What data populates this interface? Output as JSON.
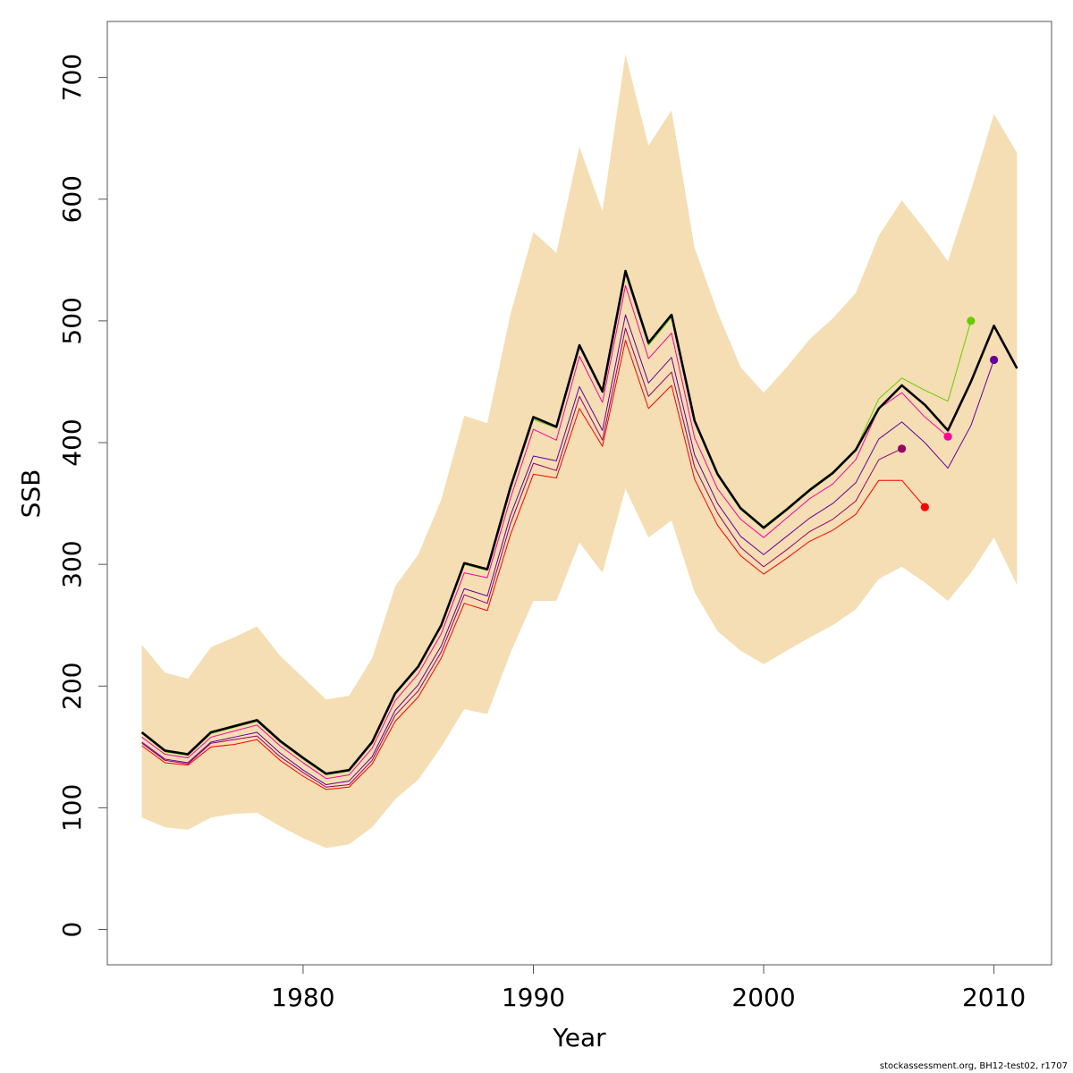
{
  "chart_data": {
    "type": "line",
    "title": "",
    "xlabel": "Year",
    "ylabel": "SSB",
    "xlim": [
      1971.5,
      2012.5
    ],
    "ylim": [
      -29,
      746
    ],
    "x_ticks": [
      1980,
      1990,
      2000,
      2010
    ],
    "y_ticks": [
      0,
      100,
      200,
      300,
      400,
      500,
      600,
      700
    ],
    "grid": false,
    "legend": "none",
    "colors": {
      "band": "#f5deb3",
      "main": "#000000",
      "peel_green": "#66cc00",
      "peel_purple": "#660099",
      "peel_pink": "#ff0099",
      "peel_maroon": "#990066",
      "peel_red": "#ff0000"
    },
    "band": {
      "x": [
        1973,
        1974,
        1975,
        1976,
        1977,
        1978,
        1979,
        1980,
        1981,
        1982,
        1983,
        1984,
        1985,
        1986,
        1987,
        1988,
        1989,
        1990,
        1991,
        1992,
        1993,
        1994,
        1995,
        1996,
        1997,
        1998,
        1999,
        2000,
        2001,
        2002,
        2003,
        2004,
        2005,
        2006,
        2007,
        2008,
        2009,
        2010,
        2011
      ],
      "upper": [
        234,
        211,
        206,
        232,
        240,
        249,
        225,
        207,
        189,
        192,
        223,
        282,
        308,
        353,
        422,
        416,
        505,
        573,
        556,
        643,
        590,
        719,
        644,
        673,
        560,
        507,
        462,
        441,
        462,
        485,
        502,
        523,
        570,
        599,
        575,
        549,
        607,
        670,
        638
      ],
      "lower": [
        92,
        84,
        82,
        92,
        95,
        96,
        85,
        75,
        67,
        70,
        84,
        107,
        123,
        150,
        181,
        177,
        227,
        270,
        270,
        318,
        293,
        362,
        322,
        336,
        277,
        245,
        229,
        218,
        229,
        240,
        250,
        263,
        288,
        298,
        285,
        270,
        293,
        322,
        283
      ]
    },
    "series": [
      {
        "x": [
          1973,
          1974,
          1975,
          1976,
          1977,
          1978,
          1979,
          1980,
          1981,
          1982,
          1983,
          1984,
          1985,
          1986,
          1987,
          1988,
          1989,
          1990,
          1991,
          1992,
          1993,
          1994,
          1995,
          1996,
          1997,
          1998,
          1999,
          2000,
          2001,
          2002,
          2003,
          2004,
          2005,
          2006,
          2007,
          2008,
          2009,
          2010,
          2011
        ],
        "values": [
          162,
          147,
          144,
          162,
          167,
          172,
          155,
          141,
          128,
          131,
          154,
          194,
          216,
          250,
          301,
          296,
          363,
          421,
          413,
          480,
          442,
          541,
          482,
          505,
          418,
          374,
          346,
          330,
          345,
          361,
          375,
          394,
          428,
          447,
          431,
          410,
          450,
          496,
          461
        ],
        "color": "#000000",
        "width": 2.6
      },
      {
        "x": [
          1973,
          1974,
          1975,
          1976,
          1977,
          1978,
          1979,
          1980,
          1981,
          1982,
          1983,
          1984,
          1985,
          1986,
          1987,
          1988,
          1989,
          1990,
          1991,
          1992,
          1993,
          1994,
          1995,
          1996,
          1997,
          1998,
          1999,
          2000,
          2001,
          2002,
          2003,
          2004,
          2005,
          2006,
          2007,
          2008,
          2009
        ],
        "values": [
          161,
          146,
          143,
          161,
          166,
          171,
          154,
          140,
          127,
          130,
          153,
          193,
          215,
          249,
          300,
          295,
          362,
          419,
          412,
          479,
          441,
          539,
          480,
          503,
          418,
          375,
          347,
          331,
          346,
          362,
          376,
          395,
          436,
          453,
          443,
          434,
          500
        ],
        "color": "#66cc00",
        "width": 1,
        "end_point": true
      },
      {
        "x": [
          1973,
          1974,
          1975,
          1976,
          1977,
          1978,
          1979,
          1980,
          1981,
          1982,
          1983,
          1984,
          1985,
          1986,
          1987,
          1988,
          1989,
          1990,
          1991,
          1992,
          1993,
          1994,
          1995,
          1996,
          1997,
          1998,
          1999,
          2000,
          2001,
          2002,
          2003,
          2004,
          2005,
          2006,
          2007,
          2008
        ],
        "values": [
          158,
          144,
          141,
          158,
          163,
          168,
          151,
          137,
          124,
          127,
          149,
          188,
          210,
          243,
          293,
          289,
          354,
          411,
          402,
          471,
          433,
          529,
          469,
          490,
          404,
          362,
          337,
          322,
          338,
          354,
          366,
          386,
          428,
          441,
          421,
          405
        ],
        "color": "#ff0099",
        "width": 1,
        "end_point": true
      },
      {
        "x": [
          1973,
          1974,
          1975,
          1976,
          1977,
          1978,
          1979,
          1980,
          1981,
          1982,
          1983,
          1984,
          1985,
          1986,
          1987,
          1988,
          1989,
          1990,
          1991,
          1992,
          1993,
          1994,
          1995,
          1996,
          1997,
          1998,
          1999,
          2000,
          2001,
          2002,
          2003,
          2004,
          2005,
          2006,
          2007,
          2008,
          2009,
          2010
        ],
        "values": [
          154,
          140,
          137,
          154,
          158,
          162,
          145,
          131,
          119,
          122,
          142,
          180,
          201,
          233,
          280,
          274,
          340,
          389,
          385,
          446,
          410,
          505,
          449,
          470,
          390,
          350,
          323,
          308,
          323,
          338,
          350,
          367,
          403,
          417,
          400,
          379,
          414,
          468
        ],
        "color": "#660099",
        "width": 1,
        "end_point": true
      },
      {
        "x": [
          1973,
          1974,
          1975,
          1976,
          1977,
          1978,
          1979,
          1980,
          1981,
          1982,
          1983,
          1984,
          1985,
          1986,
          1987,
          1988,
          1989,
          1990,
          1991,
          1992,
          1993,
          1994,
          1995,
          1996,
          1997,
          1998,
          1999,
          2000,
          2001,
          2002,
          2003,
          2004,
          2005,
          2006
        ],
        "values": [
          153,
          139,
          136,
          153,
          156,
          159,
          142,
          129,
          117,
          119,
          139,
          176,
          196,
          228,
          275,
          268,
          333,
          383,
          377,
          438,
          402,
          494,
          438,
          458,
          380,
          342,
          314,
          298,
          312,
          327,
          337,
          352,
          386,
          395
        ],
        "color": "#990066",
        "width": 1,
        "end_point": true
      },
      {
        "x": [
          1973,
          1974,
          1975,
          1976,
          1977,
          1978,
          1979,
          1980,
          1981,
          1982,
          1983,
          1984,
          1985,
          1986,
          1987,
          1988,
          1989,
          1990,
          1991,
          1992,
          1993,
          1994,
          1995,
          1996,
          1997,
          1998,
          1999,
          2000,
          2001,
          2002,
          2003,
          2004,
          2005,
          2006,
          2007
        ],
        "values": [
          151,
          137,
          135,
          150,
          152,
          156,
          139,
          126,
          115,
          117,
          136,
          171,
          191,
          223,
          268,
          262,
          324,
          374,
          371,
          428,
          397,
          484,
          428,
          447,
          370,
          332,
          307,
          292,
          305,
          319,
          328,
          341,
          369,
          369,
          347
        ],
        "color": "#ff0000",
        "width": 1,
        "end_point": true
      }
    ]
  },
  "footer": "stockassessment.org, BH12-test02, r1707"
}
